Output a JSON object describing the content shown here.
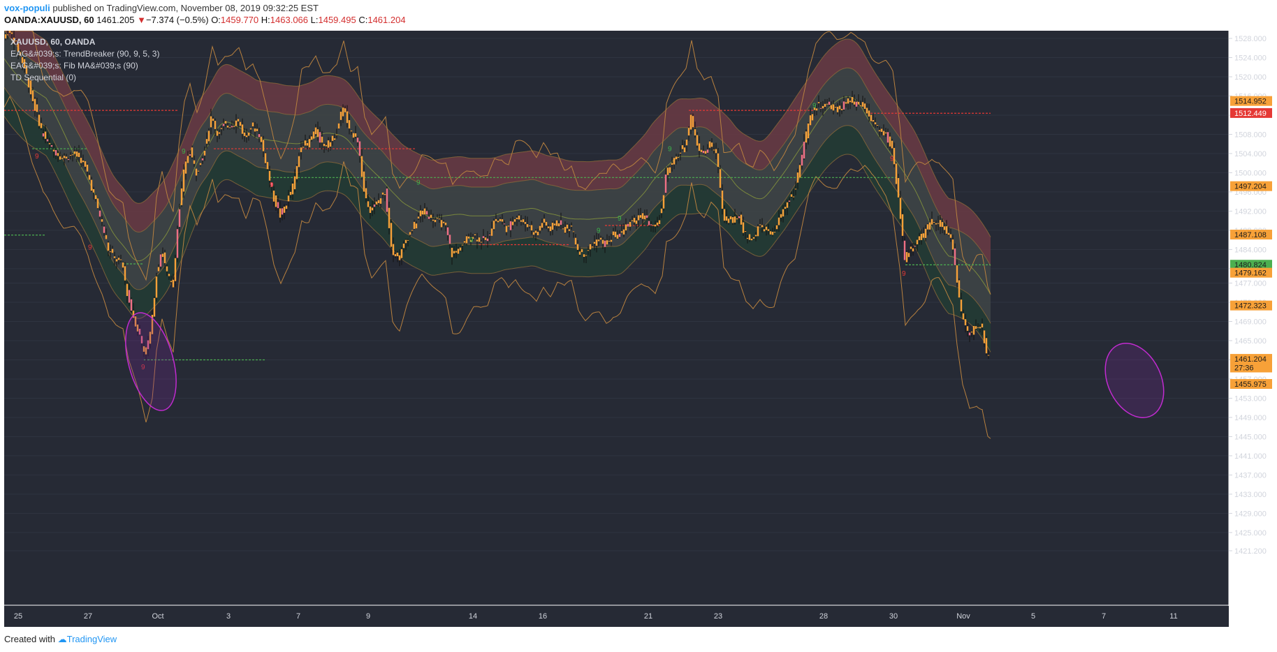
{
  "header": {
    "author": "vox-populi",
    "published_text": "published on TradingView.com, November 08, 2019 09:32:25 EST",
    "symbol": "OANDA:XAUUSD, 60",
    "last_price": "1461.205",
    "down_arrow": "▼",
    "change": "−7.374 (−0.5%)",
    "open_label": "O:",
    "open": "1459.770",
    "high_label": "H:",
    "high": "1463.066",
    "low_label": "L:",
    "low": "1459.495",
    "close_label": "C:",
    "close": "1461.204"
  },
  "legend": {
    "title": "XAUUSD, 60, OANDA",
    "indicators": [
      "EAG&#039;s: TrendBreaker (90, 9, 5, 3)",
      "EAG&#039;s: Fib MA&#039;s (90)",
      "TD Sequential (0)"
    ]
  },
  "footer": {
    "created_with": "Created with",
    "brand": "TradingView"
  },
  "colors": {
    "background": "#262a35",
    "grid": "#2f3441",
    "candle": "#f7a138",
    "candle_down": "#f06f85",
    "band_upper": "#6b3b44",
    "band_middle": "#3e4446",
    "band_lower": "#233a35",
    "envelope": "#b8813f",
    "ellipse": "#c12bd0",
    "td_green": "#3bb34a",
    "td_red": "#e53935"
  },
  "chart_data": {
    "type": "candlestick",
    "ylim": [
      1418,
      1531
    ],
    "x_ticks": [
      "25",
      "27",
      "Oct",
      "3",
      "7",
      "9",
      "14",
      "16",
      "21",
      "23",
      "28",
      "30",
      "Nov",
      "5",
      "7",
      "11"
    ],
    "y_ticks": [
      "1528.000",
      "1524.000",
      "1520.000",
      "1516.000",
      "1512.000",
      "1508.000",
      "1504.000",
      "1500.000",
      "1496.000",
      "1492.000",
      "1488.000",
      "1484.000",
      "1480.000",
      "1477.000",
      "1473.000",
      "1469.000",
      "1465.000",
      "1461.000",
      "1457.000",
      "1453.000",
      "1449.000",
      "1445.000",
      "1441.000",
      "1437.000",
      "1433.000",
      "1429.000",
      "1425.000",
      "1421.200"
    ],
    "price_labels": [
      {
        "text": "1514.952",
        "value": 1514.952,
        "color": "#f7a138"
      },
      {
        "text": "1512.449",
        "value": 1512.449,
        "color": "#e53935"
      },
      {
        "text": "1497.204",
        "value": 1497.204,
        "color": "#f7a138"
      },
      {
        "text": "1487.108",
        "value": 1487.108,
        "color": "#f7a138"
      },
      {
        "text": "1480.824",
        "value": 1480.824,
        "color": "#4caf50"
      },
      {
        "text": "1479.162",
        "value": 1479.162,
        "color": "#f7a138"
      },
      {
        "text": "1472.323",
        "value": 1472.323,
        "color": "#f7a138"
      },
      {
        "text": "1461.204",
        "value": 1461.204,
        "color": "#f7a138"
      },
      {
        "text": "27:36",
        "value": 1459.4,
        "color": "#f7a138"
      },
      {
        "text": "1455.975",
        "value": 1455.975,
        "color": "#f7a138"
      }
    ],
    "price_path": [
      [
        0,
        1528
      ],
      [
        8,
        1530
      ],
      [
        20,
        1526
      ],
      [
        32,
        1521
      ],
      [
        40,
        1516
      ],
      [
        48,
        1512
      ],
      [
        56,
        1508
      ],
      [
        70,
        1505
      ],
      [
        85,
        1503
      ],
      [
        100,
        1504
      ],
      [
        110,
        1503
      ],
      [
        120,
        1500
      ],
      [
        130,
        1495
      ],
      [
        140,
        1490
      ],
      [
        150,
        1484
      ],
      [
        160,
        1482
      ],
      [
        170,
        1481
      ],
      [
        178,
        1474
      ],
      [
        186,
        1470
      ],
      [
        195,
        1466
      ],
      [
        203,
        1462
      ],
      [
        212,
        1468
      ],
      [
        218,
        1478
      ],
      [
        226,
        1484
      ],
      [
        234,
        1479
      ],
      [
        242,
        1476
      ],
      [
        250,
        1490
      ],
      [
        258,
        1500
      ],
      [
        266,
        1505
      ],
      [
        276,
        1500
      ],
      [
        286,
        1504
      ],
      [
        298,
        1512
      ],
      [
        306,
        1508
      ],
      [
        316,
        1510
      ],
      [
        326,
        1510
      ],
      [
        336,
        1511
      ],
      [
        346,
        1507
      ],
      [
        356,
        1510
      ],
      [
        366,
        1508
      ],
      [
        376,
        1502
      ],
      [
        386,
        1495
      ],
      [
        396,
        1491
      ],
      [
        406,
        1494
      ],
      [
        416,
        1498
      ],
      [
        426,
        1506
      ],
      [
        436,
        1506
      ],
      [
        446,
        1509
      ],
      [
        456,
        1506
      ],
      [
        466,
        1506
      ],
      [
        476,
        1508
      ],
      [
        486,
        1514
      ],
      [
        496,
        1508
      ],
      [
        506,
        1508
      ],
      [
        516,
        1496
      ],
      [
        526,
        1492
      ],
      [
        536,
        1494
      ],
      [
        546,
        1496
      ],
      [
        556,
        1484
      ],
      [
        566,
        1482
      ],
      [
        576,
        1486
      ],
      [
        588,
        1489
      ],
      [
        598,
        1492
      ],
      [
        610,
        1491
      ],
      [
        620,
        1490
      ],
      [
        632,
        1489
      ],
      [
        642,
        1483
      ],
      [
        652,
        1484
      ],
      [
        662,
        1486
      ],
      [
        672,
        1487
      ],
      [
        682,
        1486
      ],
      [
        692,
        1486
      ],
      [
        702,
        1490
      ],
      [
        712,
        1490
      ],
      [
        722,
        1488
      ],
      [
        732,
        1491
      ],
      [
        742,
        1490
      ],
      [
        752,
        1489
      ],
      [
        762,
        1487
      ],
      [
        772,
        1490
      ],
      [
        782,
        1488
      ],
      [
        792,
        1490
      ],
      [
        802,
        1488
      ],
      [
        812,
        1489
      ],
      [
        822,
        1484
      ],
      [
        832,
        1483
      ],
      [
        842,
        1485
      ],
      [
        852,
        1486
      ],
      [
        862,
        1485
      ],
      [
        872,
        1487
      ],
      [
        882,
        1487
      ],
      [
        892,
        1489
      ],
      [
        902,
        1490
      ],
      [
        912,
        1491
      ],
      [
        922,
        1490
      ],
      [
        932,
        1488
      ],
      [
        942,
        1492
      ],
      [
        948,
        1500
      ],
      [
        958,
        1502
      ],
      [
        968,
        1504
      ],
      [
        976,
        1506
      ],
      [
        984,
        1512
      ],
      [
        992,
        1506
      ],
      [
        1002,
        1504
      ],
      [
        1012,
        1506
      ],
      [
        1022,
        1503
      ],
      [
        1030,
        1491
      ],
      [
        1040,
        1490
      ],
      [
        1052,
        1491
      ],
      [
        1062,
        1487
      ],
      [
        1072,
        1486
      ],
      [
        1082,
        1489
      ],
      [
        1092,
        1488
      ],
      [
        1102,
        1487
      ],
      [
        1112,
        1491
      ],
      [
        1122,
        1494
      ],
      [
        1132,
        1496
      ],
      [
        1142,
        1503
      ],
      [
        1152,
        1510
      ],
      [
        1162,
        1514
      ],
      [
        1172,
        1514
      ],
      [
        1182,
        1514
      ],
      [
        1192,
        1513
      ],
      [
        1202,
        1514
      ],
      [
        1212,
        1515
      ],
      [
        1222,
        1514
      ],
      [
        1232,
        1514
      ],
      [
        1242,
        1511
      ],
      [
        1252,
        1509
      ],
      [
        1262,
        1508
      ],
      [
        1272,
        1505
      ],
      [
        1282,
        1494
      ],
      [
        1290,
        1482
      ],
      [
        1298,
        1484
      ],
      [
        1308,
        1486
      ],
      [
        1318,
        1487
      ],
      [
        1328,
        1490
      ],
      [
        1338,
        1490
      ],
      [
        1348,
        1488
      ],
      [
        1358,
        1486
      ],
      [
        1364,
        1478
      ],
      [
        1372,
        1470
      ],
      [
        1382,
        1466
      ],
      [
        1392,
        1468
      ],
      [
        1400,
        1468
      ],
      [
        1408,
        1462
      ],
      [
        1412,
        1461
      ]
    ],
    "annotations": [
      "9"
    ]
  }
}
